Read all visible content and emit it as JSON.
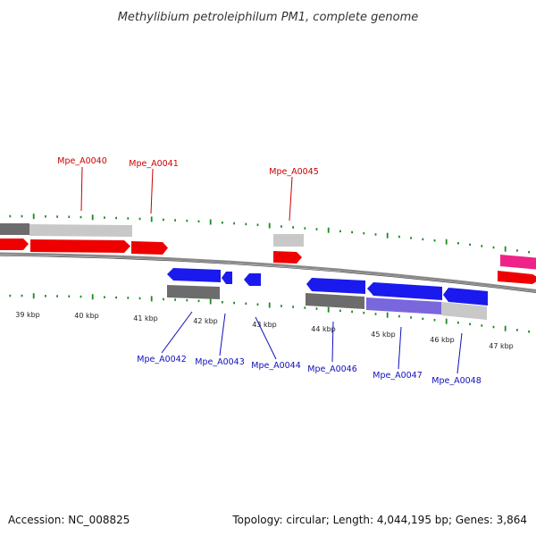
{
  "title": "Methylibium petroleiphilum PM1, complete genome",
  "footer": {
    "accession": "Accession: NC_008825",
    "stats": "Topology: circular; Length: 4,044,195 bp; Genes: 3,864"
  },
  "colors": {
    "forward_label": "#cc0000",
    "reverse_label": "#1010bb",
    "backbone": "#8a8a8a",
    "tick": "#1e8a1e",
    "forward_gene": "#ee0000",
    "reverse_gene": "#1a1aee",
    "pink_gene": "#ee2288",
    "light_gray": "#c8c8c8",
    "dark_gray": "#6c6c6c",
    "lavender": "#7a66dd"
  },
  "kbp_labels": [
    "39 kbp",
    "40 kbp",
    "41 kbp",
    "42 kbp",
    "43 kbp",
    "44 kbp",
    "45 kbp",
    "46 kbp",
    "47 kbp"
  ],
  "forward_gene_labels": [
    "Mpe_A0040",
    "Mpe_A0041",
    "Mpe_A0045"
  ],
  "reverse_gene_labels": [
    "Mpe_A0042",
    "Mpe_A0043",
    "Mpe_A0044",
    "Mpe_A0046",
    "Mpe_A0047",
    "Mpe_A0048"
  ]
}
